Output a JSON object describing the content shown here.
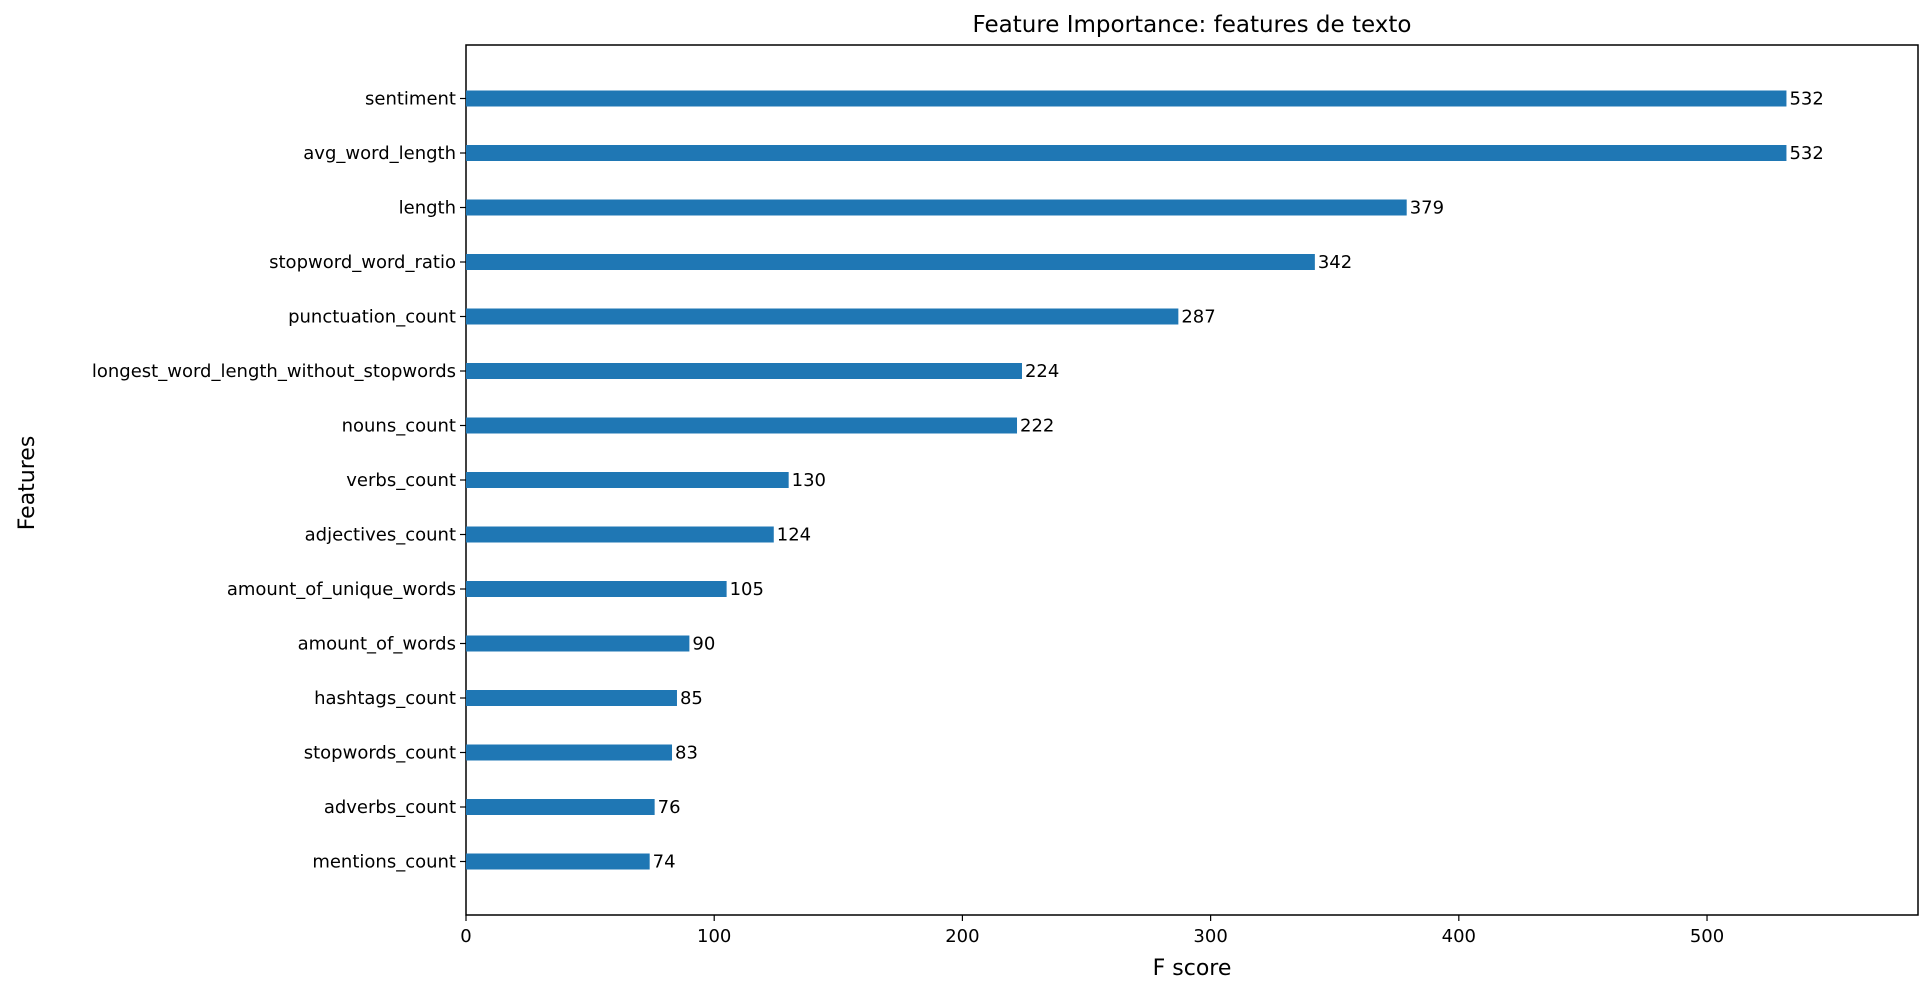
{
  "chart_data": {
    "type": "bar",
    "orientation": "horizontal",
    "title": "Feature Importance: features de texto",
    "xlabel": "F score",
    "ylabel": "Features",
    "xlim": [
      0,
      585
    ],
    "xticks": [
      0,
      100,
      200,
      300,
      400,
      500
    ],
    "grid": false,
    "bar_color": "#1f77b4",
    "categories": [
      "sentiment",
      "avg_word_length",
      "length",
      "stopword_word_ratio",
      "punctuation_count",
      "longest_word_length_without_stopwords",
      "nouns_count",
      "verbs_count",
      "adjectives_count",
      "amount_of_unique_words",
      "amount_of_words",
      "hashtags_count",
      "stopwords_count",
      "adverbs_count",
      "mentions_count"
    ],
    "values": [
      532,
      532,
      379,
      342,
      287,
      224,
      222,
      130,
      124,
      105,
      90,
      85,
      83,
      76,
      74
    ]
  }
}
